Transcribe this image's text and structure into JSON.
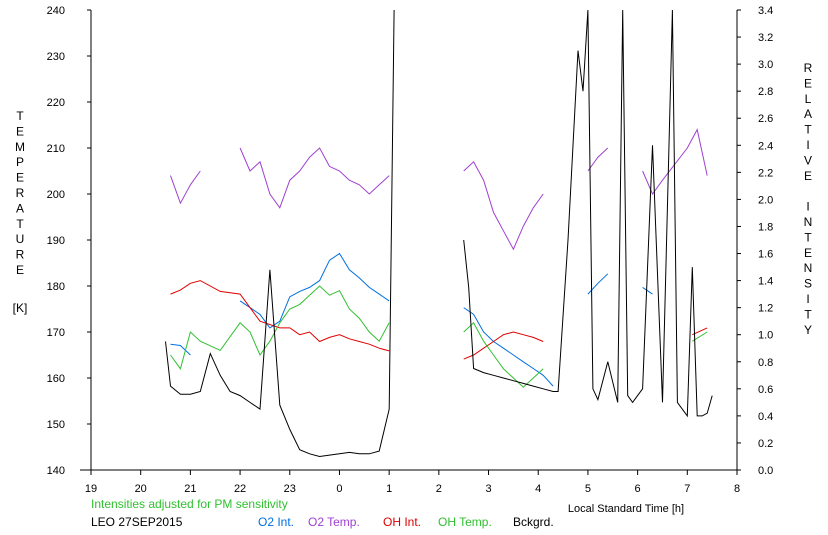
{
  "chart_data": {
    "type": "line",
    "xlabel": "Local Standard Time [h]",
    "x_ticks": [
      "19",
      "20",
      "21",
      "22",
      "23",
      "0",
      "1",
      "2",
      "3",
      "4",
      "5",
      "6",
      "7",
      "8"
    ],
    "x_range": [
      19,
      32
    ],
    "ylabel_left_letters": [
      "T",
      "E",
      "M",
      "P",
      "E",
      "R",
      "A",
      "T",
      "U",
      "R",
      "E"
    ],
    "ylabel_left_unit": "[K]",
    "ylim_left": [
      140,
      240
    ],
    "y_ticks_left": [
      "140",
      "150",
      "160",
      "170",
      "180",
      "190",
      "200",
      "210",
      "220",
      "230",
      "240"
    ],
    "ylabel_right_letters": [
      "R",
      "E",
      "L",
      "A",
      "T",
      "I",
      "V",
      "E",
      "",
      "I",
      "N",
      "T",
      "E",
      "N",
      "S",
      "I",
      "T",
      "Y"
    ],
    "ylim_right": [
      0.0,
      3.4
    ],
    "y_ticks_right": [
      "0.0",
      "0.2",
      "0.4",
      "0.6",
      "0.8",
      "1.0",
      "1.2",
      "1.4",
      "1.6",
      "1.8",
      "2.0",
      "2.2",
      "2.4",
      "2.6",
      "2.8",
      "3.0",
      "3.2",
      "3.4"
    ],
    "grid": false,
    "note": "Intensities adjusted for PM sensitivity",
    "station_label": "LEO 27SEP2015",
    "series": [
      {
        "name": "O2 Int.",
        "axis": "right",
        "color": "#0070e0",
        "x": [
          20.6,
          20.8,
          21.0,
          22.0,
          22.2,
          22.4,
          22.6,
          22.8,
          23.0,
          23.2,
          23.4,
          23.6,
          23.8,
          24.0,
          24.2,
          24.4,
          24.6,
          24.8,
          25.0,
          26.5,
          26.7,
          26.9,
          27.1,
          27.3,
          27.5,
          27.7,
          27.9,
          28.1,
          28.3,
          29.0,
          29.2,
          29.4,
          30.1,
          30.3
        ],
        "y": [
          0.93,
          0.92,
          0.85,
          1.25,
          1.2,
          1.15,
          1.05,
          1.1,
          1.28,
          1.32,
          1.35,
          1.4,
          1.55,
          1.6,
          1.48,
          1.42,
          1.35,
          1.3,
          1.25,
          1.2,
          1.15,
          1.02,
          0.95,
          0.9,
          0.85,
          0.8,
          0.75,
          0.7,
          0.62,
          1.3,
          1.38,
          1.45,
          1.35,
          1.3
        ]
      },
      {
        "name": "O2 Temp.",
        "axis": "left",
        "color": "#a040d0",
        "x": [
          20.6,
          20.8,
          21.0,
          21.2,
          22.0,
          22.2,
          22.4,
          22.6,
          22.8,
          23.0,
          23.2,
          23.4,
          23.6,
          23.8,
          24.0,
          24.2,
          24.4,
          24.6,
          24.8,
          25.0,
          26.5,
          26.7,
          26.9,
          27.1,
          27.3,
          27.5,
          27.7,
          27.9,
          28.1,
          29.0,
          29.2,
          29.4,
          30.1,
          30.3,
          30.5,
          31.0,
          31.2,
          31.4
        ],
        "y": [
          204,
          198,
          202,
          205,
          210,
          205,
          207,
          200,
          197,
          203,
          205,
          208,
          210,
          206,
          205,
          203,
          202,
          200,
          202,
          204,
          205,
          207,
          203,
          196,
          192,
          188,
          193,
          197,
          200,
          205,
          208,
          210,
          205,
          200,
          203,
          210,
          214,
          204
        ]
      },
      {
        "name": "OH Int.",
        "axis": "right",
        "color": "#e00000",
        "x": [
          20.6,
          20.8,
          21.0,
          21.2,
          21.6,
          22.0,
          22.2,
          22.4,
          22.8,
          23.0,
          23.2,
          23.4,
          23.6,
          23.8,
          24.0,
          24.2,
          24.4,
          24.6,
          24.8,
          25.0,
          26.5,
          26.7,
          26.9,
          27.1,
          27.3,
          27.5,
          27.7,
          27.9,
          28.1,
          30.1,
          31.1,
          31.4
        ],
        "y": [
          1.3,
          1.33,
          1.38,
          1.4,
          1.32,
          1.3,
          1.2,
          1.1,
          1.05,
          1.05,
          1.0,
          1.02,
          0.95,
          0.98,
          1.0,
          0.97,
          0.95,
          0.93,
          0.9,
          0.88,
          0.82,
          0.85,
          0.9,
          0.95,
          1.0,
          1.02,
          1.0,
          0.98,
          0.95,
          0.95,
          1.0,
          1.05
        ]
      },
      {
        "name": "OH Temp.",
        "axis": "left",
        "color": "#30c030",
        "x": [
          20.6,
          20.8,
          21.0,
          21.2,
          21.6,
          22.0,
          22.2,
          22.4,
          22.6,
          22.8,
          23.0,
          23.2,
          23.4,
          23.6,
          23.8,
          24.0,
          24.2,
          24.4,
          24.6,
          24.8,
          25.0,
          26.5,
          26.7,
          26.9,
          27.1,
          27.3,
          27.5,
          27.7,
          27.9,
          28.1,
          30.1,
          31.1,
          31.4
        ],
        "y": [
          165,
          162,
          170,
          168,
          166,
          172,
          170,
          165,
          168,
          172,
          175,
          176,
          178,
          180,
          178,
          179,
          175,
          173,
          170,
          168,
          172,
          170,
          172,
          168,
          165,
          162,
          160,
          158,
          160,
          162,
          166,
          168,
          170
        ]
      },
      {
        "name": "Bckgrd.",
        "axis": "right",
        "color": "#000000",
        "x": [
          20.5,
          20.6,
          20.8,
          21.0,
          21.2,
          21.4,
          21.6,
          21.8,
          22.0,
          22.2,
          22.4,
          22.6,
          22.8,
          23.0,
          23.2,
          23.4,
          23.6,
          23.8,
          24.0,
          24.2,
          24.4,
          24.6,
          24.8,
          25.0,
          25.1,
          26.5,
          26.6,
          26.7,
          26.9,
          27.1,
          27.3,
          27.5,
          27.7,
          27.9,
          28.1,
          28.3,
          28.4,
          28.6,
          28.8,
          28.9,
          29.0,
          29.1,
          29.2,
          29.4,
          29.6,
          29.7,
          29.8,
          29.9,
          30.0,
          30.1,
          30.3,
          30.5,
          30.7,
          30.8,
          31.0,
          31.1,
          31.2,
          31.3,
          31.4,
          31.5
        ],
        "y": [
          0.95,
          0.62,
          0.56,
          0.56,
          0.58,
          0.86,
          0.7,
          0.58,
          0.55,
          0.5,
          0.45,
          1.48,
          0.48,
          0.3,
          0.15,
          0.12,
          0.1,
          0.11,
          0.12,
          0.13,
          0.12,
          0.12,
          0.14,
          0.45,
          3.4,
          1.7,
          1.35,
          0.75,
          0.72,
          0.7,
          0.68,
          0.66,
          0.64,
          0.62,
          0.6,
          0.58,
          0.58,
          1.7,
          3.1,
          2.8,
          3.4,
          0.6,
          0.52,
          0.8,
          0.5,
          3.4,
          0.55,
          0.5,
          0.55,
          0.6,
          2.4,
          0.5,
          3.4,
          0.5,
          0.4,
          1.5,
          0.4,
          0.4,
          0.42,
          0.55
        ]
      }
    ]
  }
}
